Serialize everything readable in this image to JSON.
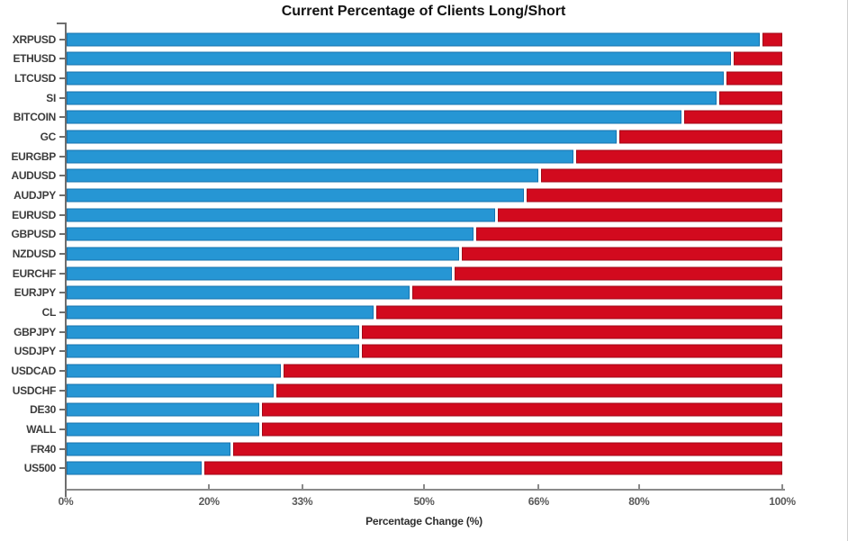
{
  "title": "Current Percentage of Clients Long/Short",
  "chart_data": {
    "type": "bar",
    "orientation": "horizontal",
    "stacked": true,
    "title": "Current Percentage of Clients Long/Short",
    "xlabel": "Percentage Change (%)",
    "ylabel": "",
    "xlim": [
      0,
      100
    ],
    "grid": false,
    "legend_position": "none",
    "x_ticks": [
      {
        "value": 0,
        "label": "0%"
      },
      {
        "value": 20,
        "label": "20%"
      },
      {
        "value": 33,
        "label": "33%"
      },
      {
        "value": 50,
        "label": "50%"
      },
      {
        "value": 66,
        "label": "66%"
      },
      {
        "value": 80,
        "label": "80%"
      },
      {
        "value": 100,
        "label": "100%"
      }
    ],
    "categories": [
      "XRPUSD",
      "ETHUSD",
      "LTCUSD",
      "SI",
      "BITCOIN",
      "GC",
      "EURGBP",
      "AUDUSD",
      "AUDJPY",
      "EURUSD",
      "GBPUSD",
      "NZDUSD",
      "EURCHF",
      "EURJPY",
      "CL",
      "GBPJPY",
      "USDJPY",
      "USDCAD",
      "USDCHF",
      "DE30",
      "WALL",
      "FR40",
      "US500"
    ],
    "series": [
      {
        "name": "Long",
        "color": "#2696d4",
        "border_color": "#1573ae",
        "values": [
          97,
          93,
          92,
          91,
          86,
          77,
          71,
          66,
          64,
          60,
          57,
          55,
          54,
          48,
          43,
          41,
          41,
          30,
          29,
          27,
          27,
          23,
          19
        ]
      },
      {
        "name": "Short",
        "color": "#d20a1e",
        "border_color": "#a00717",
        "values": [
          3,
          7,
          8,
          9,
          14,
          23,
          29,
          34,
          36,
          40,
          43,
          45,
          46,
          52,
          57,
          59,
          59,
          70,
          71,
          73,
          73,
          77,
          81
        ]
      }
    ]
  }
}
